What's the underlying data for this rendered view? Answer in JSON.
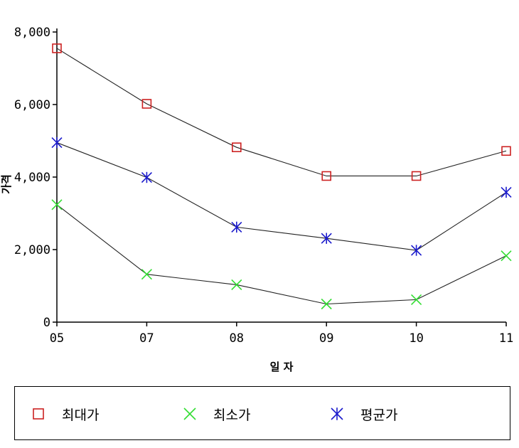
{
  "chart_data": {
    "type": "line",
    "categories": [
      "05",
      "07",
      "08",
      "09",
      "10",
      "11"
    ],
    "xlabel": "일 자",
    "ylabel": "가격",
    "ylim": [
      0,
      8000
    ],
    "yticks": [
      "0",
      "2,000",
      "4,000",
      "6,000",
      "8,000"
    ],
    "grid": false,
    "legend_placement": "bottom",
    "series": [
      {
        "name": "최대가",
        "marker": "square",
        "color": "#cc2222",
        "values": [
          7550,
          6020,
          4820,
          4030,
          4030,
          4720
        ]
      },
      {
        "name": "최소가",
        "marker": "x",
        "color": "#33dd33",
        "values": [
          3240,
          1320,
          1030,
          500,
          620,
          1830
        ]
      },
      {
        "name": "평균가",
        "marker": "asterisk",
        "color": "#1a1acc",
        "values": [
          4950,
          3990,
          2620,
          2310,
          1980,
          3580
        ]
      }
    ]
  }
}
